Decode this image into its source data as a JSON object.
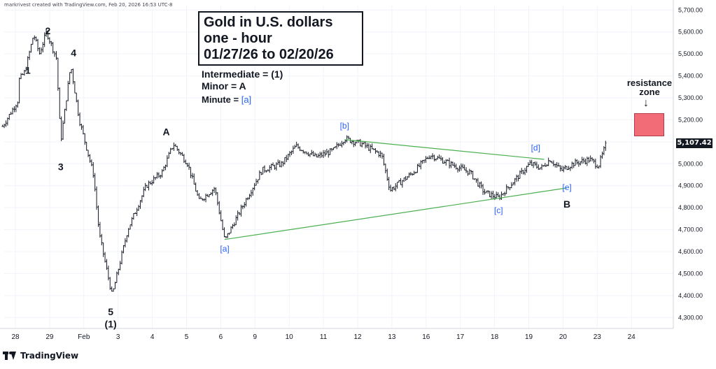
{
  "credit": "markrivest created with TradingView.com, Feb 20, 2026 16:53 UTC-8",
  "brand": "TradingView",
  "title_lines": [
    "Gold in U.S. dollars",
    "one - hour",
    "01/27/26 to 02/20/26"
  ],
  "legend": {
    "intermediate": "Intermediate = (1)",
    "minor": "Minor = A",
    "minute_prefix": "Minute = ",
    "minute_symbol": "[a]"
  },
  "resistance": {
    "line1": "resistance",
    "line2": "zone",
    "arrow": "↓",
    "low": 5150,
    "high": 5245,
    "color": "#f26c77"
  },
  "last_price": "5,107.42",
  "colors": {
    "bar": "#131722",
    "wave_label": "#131722",
    "sub_label": "#2962ff",
    "trendline": "#4caf50",
    "grid": "#f0f3fa"
  },
  "chart_data": {
    "type": "ohlc",
    "title": "Gold in U.S. dollars one - hour 01/27/26 to 02/20/26",
    "xlabel": "",
    "ylabel": "",
    "ylim": [
      4250,
      5720
    ],
    "y_ticks": [
      "5,700.00",
      "5,600.00",
      "5,500.00",
      "5,400.00",
      "5,300.00",
      "5,200.00",
      "5,100.00",
      "5,000.00",
      "4,900.00",
      "4,800.00",
      "4,700.00",
      "4,600.00",
      "4,500.00",
      "4,400.00",
      "4,300.00"
    ],
    "x_ticks": [
      "28",
      "29",
      "Feb",
      "3",
      "4",
      "5",
      "6",
      "9",
      "10",
      "11",
      "12",
      "13",
      "16",
      "17",
      "18",
      "19",
      "20",
      "23",
      "24"
    ],
    "price_path": [
      {
        "t": "Jan 27 09:00",
        "p": 5170
      },
      {
        "t": "Jan 27 20:00",
        "p": 5290
      },
      {
        "t": "Jan 28 10:00",
        "p": 5330
      },
      {
        "t": "Jan 28 20:00",
        "p": 5420
      },
      {
        "t": "Jan 29 02:00",
        "p": 5590
      },
      {
        "t": "Jan 29 06:00",
        "p": 5500
      },
      {
        "t": "Jan 29 11:00",
        "p": 5600
      },
      {
        "t": "Jan 29 18:00",
        "p": 5480
      },
      {
        "t": "Jan 29 21:00",
        "p": 5100
      },
      {
        "t": "Jan 30 04:00",
        "p": 5450
      },
      {
        "t": "Jan 30 10:00",
        "p": 5200
      },
      {
        "t": "Jan 30 20:00",
        "p": 4950
      },
      {
        "t": "Feb 2 00:00",
        "p": 4680
      },
      {
        "t": "Feb 2 09:00",
        "p": 4400
      },
      {
        "t": "Feb 2 20:00",
        "p": 4700
      },
      {
        "t": "Feb 3 09:00",
        "p": 4900
      },
      {
        "t": "Feb 3 20:00",
        "p": 4960
      },
      {
        "t": "Feb 4 04:00",
        "p": 5090
      },
      {
        "t": "Feb 4 14:00",
        "p": 5000
      },
      {
        "t": "Feb 4 22:00",
        "p": 4830
      },
      {
        "t": "Feb 5 09:00",
        "p": 4890
      },
      {
        "t": "Feb 5 16:00",
        "p": 4650
      },
      {
        "t": "Feb 6 08:00",
        "p": 4850
      },
      {
        "t": "Feb 6 18:00",
        "p": 4970
      },
      {
        "t": "Feb 9 08:00",
        "p": 5000
      },
      {
        "t": "Feb 9 18:00",
        "p": 5080
      },
      {
        "t": "Feb 10 08:00",
        "p": 5030
      },
      {
        "t": "Feb 10 20:00",
        "p": 5060
      },
      {
        "t": "Feb 11 04:00",
        "p": 5115
      },
      {
        "t": "Feb 11 16:00",
        "p": 5090
      },
      {
        "t": "Feb 12 06:00",
        "p": 5040
      },
      {
        "t": "Feb 12 12:00",
        "p": 4880
      },
      {
        "t": "Feb 13 04:00",
        "p": 4960
      },
      {
        "t": "Feb 13 16:00",
        "p": 5040
      },
      {
        "t": "Feb 16 06:00",
        "p": 5000
      },
      {
        "t": "Feb 16 20:00",
        "p": 4960
      },
      {
        "t": "Feb 17 06:00",
        "p": 4870
      },
      {
        "t": "Feb 17 16:00",
        "p": 4845
      },
      {
        "t": "Feb 18 04:00",
        "p": 4930
      },
      {
        "t": "Feb 18 14:00",
        "p": 5000
      },
      {
        "t": "Feb 18 22:00",
        "p": 4980
      },
      {
        "t": "Feb 19 04:00",
        "p": 5020
      },
      {
        "t": "Feb 19 12:00",
        "p": 4970
      },
      {
        "t": "Feb 19 20:00",
        "p": 5000
      },
      {
        "t": "Feb 20 08:00",
        "p": 5020
      },
      {
        "t": "Feb 20 14:00",
        "p": 4990
      },
      {
        "t": "Feb 20 20:00",
        "p": 5100
      }
    ],
    "wave_labels": [
      {
        "text": "1",
        "t": "Jan 28 22:00",
        "p": 5410,
        "color": "#131722"
      },
      {
        "text": "2",
        "t": "Jan 29 12:00",
        "p": 5590,
        "color": "#131722"
      },
      {
        "text": "3",
        "t": "Jan 29 21:00",
        "p": 4970,
        "color": "#131722"
      },
      {
        "text": "4",
        "t": "Jan 30 06:00",
        "p": 5490,
        "color": "#131722"
      },
      {
        "text": "5",
        "t": "Feb 2 08:00",
        "p": 4310,
        "color": "#131722"
      },
      {
        "text": "(1)",
        "t": "Feb 2 08:00",
        "p": 4255,
        "color": "#131722"
      },
      {
        "text": "A",
        "t": "Feb 3 23:00",
        "p": 5130,
        "color": "#131722"
      },
      {
        "text": "B",
        "t": "Feb 19 16:00",
        "p": 4800,
        "color": "#131722"
      },
      {
        "text": "[a]",
        "t": "Feb 5 16:00",
        "p": 4600,
        "color": "#2962ff"
      },
      {
        "text": "[b]",
        "t": "Feb 11 04:00",
        "p": 5160,
        "color": "#2962ff"
      },
      {
        "text": "[c]",
        "t": "Feb 17 16:00",
        "p": 4775,
        "color": "#2962ff"
      },
      {
        "text": "[d]",
        "t": "Feb 18 18:00",
        "p": 5060,
        "color": "#2962ff"
      },
      {
        "text": "[e]",
        "t": "Feb 19 16:00",
        "p": 4880,
        "color": "#2962ff"
      }
    ],
    "trendlines": [
      {
        "from": {
          "t": "Feb 5 16:00",
          "p": 4655
        },
        "to": {
          "t": "Feb 19 16:00",
          "p": 4890
        }
      },
      {
        "from": {
          "t": "Feb 11 04:00",
          "p": 5110
        },
        "to": {
          "t": "Feb 19 00:00",
          "p": 5020
        }
      }
    ],
    "grid": true
  }
}
